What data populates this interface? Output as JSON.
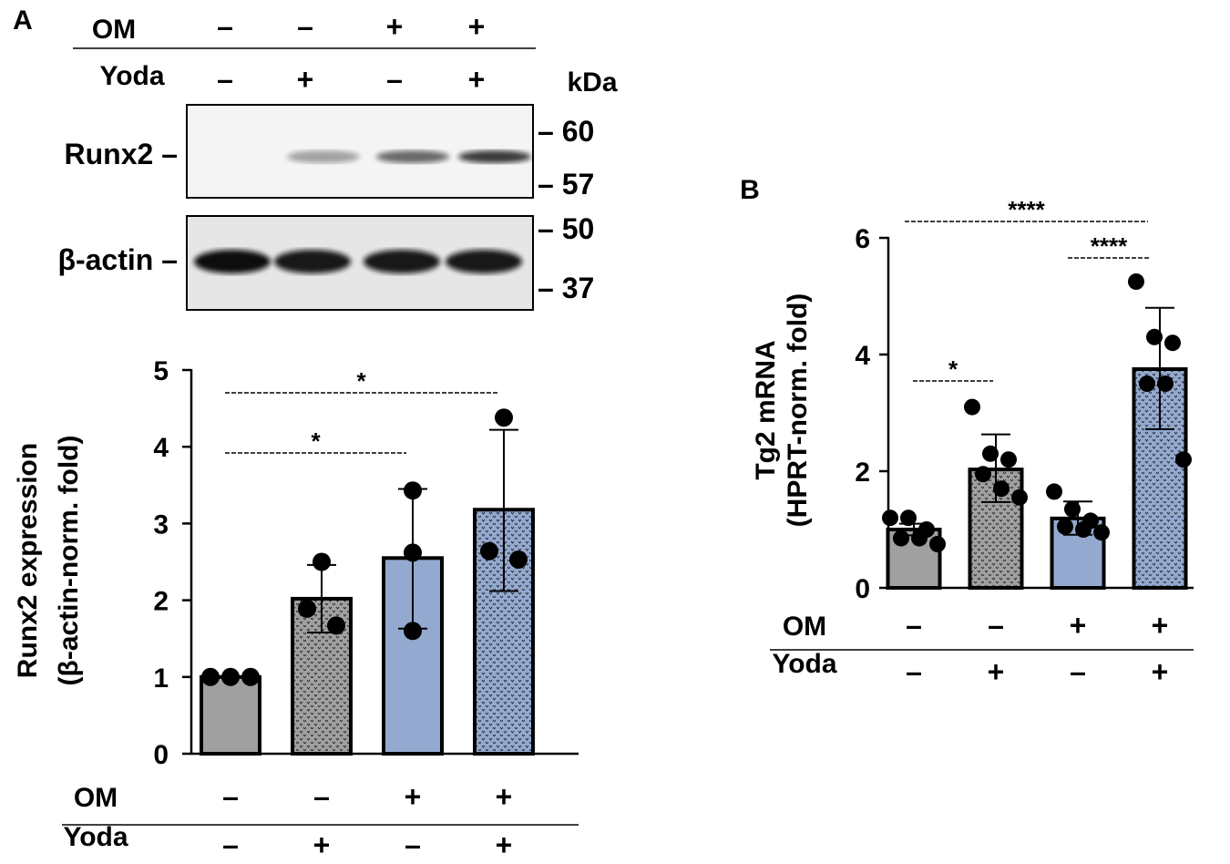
{
  "panel_labels": {
    "a": "A",
    "b": "B"
  },
  "blot": {
    "conditions": {
      "om_label": "OM",
      "yoda_label": "Yoda",
      "om": [
        "–",
        "–",
        "+",
        "+"
      ],
      "yoda": [
        "–",
        "+",
        "–",
        "+"
      ]
    },
    "kda_label": "kDa",
    "rows": [
      {
        "label": "Runx2 –",
        "markers": [
          "– 60",
          "– 57"
        ],
        "band_intensity": [
          0.0,
          0.35,
          0.6,
          0.8
        ]
      },
      {
        "label": "β-actin –",
        "markers": [
          "– 50",
          "– 37"
        ],
        "band_intensity": [
          1.0,
          0.95,
          0.95,
          0.95
        ]
      }
    ]
  },
  "chart_data": [
    {
      "type": "bar",
      "title": "",
      "ylabel_line1": "Runx2 expression",
      "ylabel_line2": "(β-actin-norm. fold)",
      "ylim": [
        0,
        5
      ],
      "yticks": [
        "0",
        "1",
        "2",
        "3",
        "4",
        "5"
      ],
      "om_label": "OM",
      "yoda_label": "Yoda",
      "om": [
        "–",
        "–",
        "+",
        "+"
      ],
      "yoda": [
        "–",
        "+",
        "–",
        "+"
      ],
      "values": [
        1.0,
        2.02,
        2.55,
        3.18
      ],
      "error_low": [
        1.0,
        1.58,
        1.63,
        2.12
      ],
      "error_high": [
        1.0,
        2.46,
        3.45,
        4.22
      ],
      "points": [
        [
          1.0,
          1.0,
          1.0
        ],
        [
          2.5,
          1.89,
          1.67
        ],
        [
          3.43,
          2.62,
          1.6
        ],
        [
          4.38,
          2.64,
          2.53
        ]
      ],
      "colors": [
        "#a0a0a0",
        "#a0a0a0",
        "#94a9cf",
        "#94a9cf"
      ],
      "patterned": [
        false,
        true,
        false,
        true
      ],
      "significance": [
        {
          "from": 0,
          "to": 3,
          "label": "*"
        },
        {
          "from": 0,
          "to": 2,
          "label": "*"
        }
      ]
    },
    {
      "type": "bar",
      "title": "",
      "ylabel_line1": "Tg2 mRNA",
      "ylabel_line2": "(HPRT-norm. fold)",
      "ylim": [
        0,
        6
      ],
      "yticks": [
        "0",
        "2",
        "4",
        "6"
      ],
      "om_label": "OM",
      "yoda_label": "Yoda",
      "om": [
        "–",
        "–",
        "+",
        "+"
      ],
      "yoda": [
        "–",
        "+",
        "–",
        "+"
      ],
      "values": [
        1.0,
        2.03,
        1.19,
        3.75
      ],
      "error_low": [
        0.9,
        1.47,
        0.91,
        2.72
      ],
      "error_high": [
        1.1,
        2.63,
        1.48,
        4.8
      ],
      "points": [
        [
          1.2,
          1.2,
          1.0,
          0.85,
          0.85,
          0.75
        ],
        [
          3.1,
          2.3,
          2.2,
          1.95,
          1.7,
          1.55
        ],
        [
          1.65,
          1.35,
          1.15,
          1.05,
          1.0,
          0.95
        ],
        [
          5.25,
          4.3,
          4.2,
          3.5,
          3.5,
          2.2
        ]
      ],
      "colors": [
        "#a0a0a0",
        "#a0a0a0",
        "#94a9cf",
        "#94a9cf"
      ],
      "patterned": [
        false,
        true,
        false,
        true
      ],
      "significance": [
        {
          "from": 0,
          "to": 3,
          "label": "****"
        },
        {
          "from": 2,
          "to": 3,
          "label": "****"
        },
        {
          "from": 0,
          "to": 1,
          "label": "*"
        }
      ]
    }
  ]
}
